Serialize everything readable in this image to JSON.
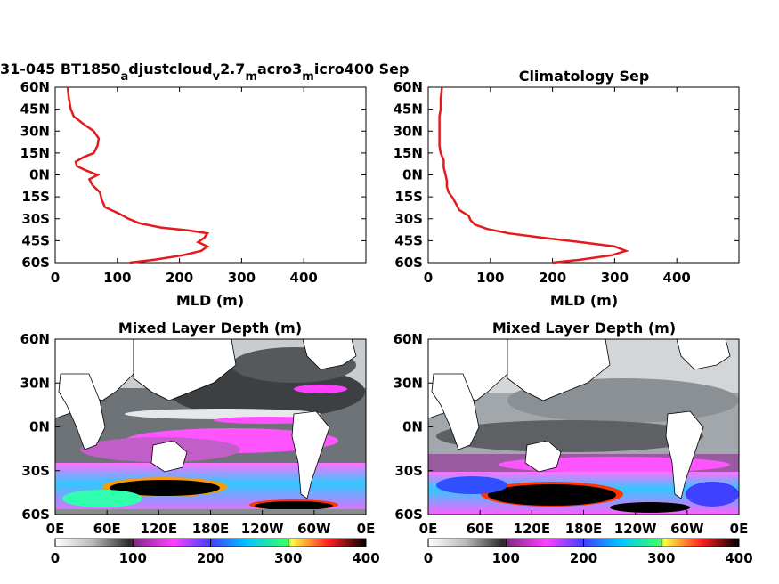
{
  "chart_data": [
    {
      "type": "line",
      "title": "31-045 BT1850",
      "title_parts": [
        "31-045 BT1850",
        "a",
        "djustcloud",
        "v",
        "2.7",
        "m",
        "acro3",
        "m",
        "icro400 Sep"
      ],
      "xlabel": "MLD (m)",
      "ylabel": "",
      "xlim": [
        0,
        500
      ],
      "ylim": [
        -60,
        60
      ],
      "xticks": [
        "0",
        "100",
        "200",
        "300",
        "400"
      ],
      "yticks": [
        "60N",
        "45N",
        "30N",
        "15N",
        "0N",
        "15S",
        "30S",
        "45S",
        "60S"
      ],
      "color": "#e41a1c",
      "series": [
        {
          "x": [
            120,
            160,
            205,
            235,
            245,
            230,
            240,
            245,
            215,
            170,
            135,
            118,
            105,
            80,
            75,
            72,
            60,
            55,
            68,
            50,
            35,
            33,
            45,
            62,
            68,
            70,
            62,
            45,
            30,
            25,
            22,
            20
          ],
          "y": [
            -60,
            -58,
            -55,
            -52,
            -49,
            -46,
            -43,
            -40,
            -38,
            -36,
            -33,
            -30,
            -27,
            -22,
            -17,
            -12,
            -7,
            -3,
            0,
            3,
            6,
            9,
            12,
            15,
            20,
            25,
            30,
            35,
            40,
            45,
            52,
            60
          ]
        }
      ]
    },
    {
      "type": "line",
      "title": "Climatology Sep",
      "xlabel": "MLD (m)",
      "ylabel": "",
      "xlim": [
        0,
        500
      ],
      "ylim": [
        -60,
        60
      ],
      "xticks": [
        "0",
        "100",
        "200",
        "300",
        "400"
      ],
      "yticks": [
        "60N",
        "45N",
        "30N",
        "15N",
        "0N",
        "15S",
        "30S",
        "45S",
        "60S"
      ],
      "color": "#e41a1c",
      "series": [
        {
          "x": [
            200,
            245,
            295,
            318,
            300,
            245,
            185,
            130,
            95,
            75,
            68,
            65,
            50,
            45,
            40,
            33,
            30,
            30,
            28,
            25,
            25,
            20,
            18,
            18,
            18,
            20,
            20,
            22
          ],
          "y": [
            -60,
            -58,
            -55,
            -52,
            -49,
            -46,
            -43,
            -40,
            -37,
            -34,
            -31,
            -28,
            -24,
            -20,
            -16,
            -12,
            -8,
            -4,
            0,
            5,
            10,
            15,
            20,
            30,
            40,
            45,
            52,
            60
          ]
        }
      ]
    },
    {
      "type": "heatmap",
      "title": "Mixed Layer Depth (m)",
      "xticks": [
        "0E",
        "60E",
        "120E",
        "180E",
        "120W",
        "60W",
        "0E"
      ],
      "yticks": [
        "60N",
        "30N",
        "0N",
        "30S",
        "60S"
      ],
      "colorbar": {
        "ticks": [
          "0",
          "100",
          "200",
          "300",
          "400"
        ],
        "range": [
          0,
          400
        ]
      }
    },
    {
      "type": "heatmap",
      "title": "Mixed Layer Depth (m)",
      "xticks": [
        "0E",
        "60E",
        "120E",
        "180E",
        "120W",
        "60W",
        "0E"
      ],
      "yticks": [
        "60N",
        "30N",
        "0N",
        "30S",
        "60S"
      ],
      "colorbar": {
        "ticks": [
          "0",
          "100",
          "200",
          "300",
          "400"
        ],
        "range": [
          0,
          400
        ]
      }
    }
  ]
}
